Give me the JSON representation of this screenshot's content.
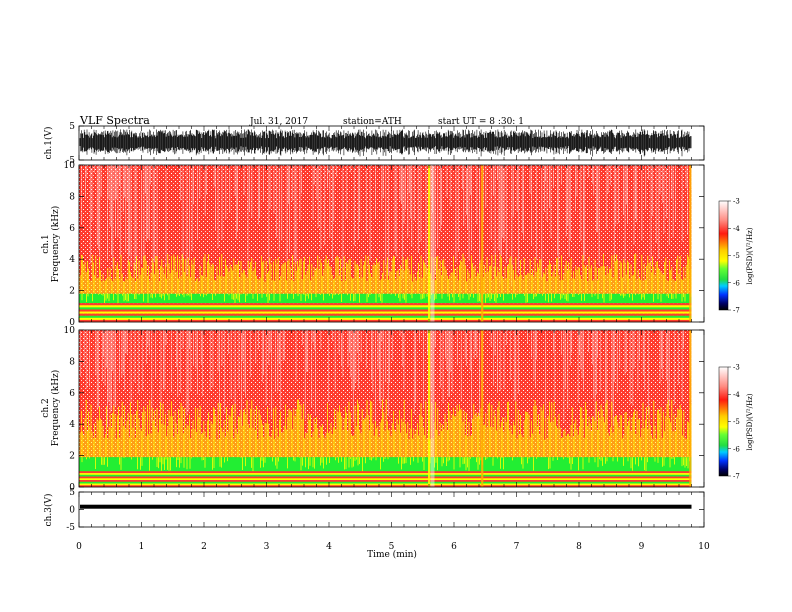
{
  "header": {
    "title": "VLF  Spectra",
    "date": "Jul.  31, 2017",
    "station": "station=ATH",
    "start": "start  UT  =   8  :30: 1"
  },
  "colors": {
    "background": "#ffffff",
    "spectrogram_low": "#ff2a1a",
    "spectrogram_mid": "#ffff00",
    "spectrogram_band": "#22ee33",
    "trace": "#000000"
  },
  "chart_data": [
    {
      "type": "line",
      "name": "ch1-waveform",
      "ylabel": "ch.1(V)",
      "ylim": [
        -5,
        5
      ],
      "yticks": [
        "5",
        "-5"
      ],
      "xlim": [
        0,
        10
      ],
      "description_values": {
        "amplitude_range": [
          -4,
          4
        ],
        "data_end_min": 9.8
      }
    },
    {
      "type": "heatmap",
      "name": "ch1-spectrogram",
      "ylabel_line1": "ch.1",
      "ylabel_line2": "Frequency  (kHz)",
      "ylim": [
        0,
        10
      ],
      "yticks": [
        "0",
        "2",
        "4",
        "6",
        "8",
        "10"
      ],
      "xlim": [
        0,
        10
      ],
      "data_end_min": 9.8,
      "colorbar": {
        "label": "log(PSD)(V²/Hz)",
        "range": [
          -7,
          -3
        ],
        "ticks": [
          "-3",
          "-4",
          "-5",
          "-6",
          "-7"
        ]
      },
      "bands_khz": {
        "green_band": [
          1.2,
          1.8
        ],
        "yellow_top": 3.2
      },
      "vertical_features_min": [
        5.6,
        6.45,
        9.78
      ]
    },
    {
      "type": "heatmap",
      "name": "ch2-spectrogram",
      "ylabel_line1": "ch.2",
      "ylabel_line2": "Frequency  (kHz)",
      "ylim": [
        0,
        10
      ],
      "yticks": [
        "0",
        "2",
        "4",
        "6",
        "8",
        "10"
      ],
      "xlim": [
        0,
        10
      ],
      "data_end_min": 9.8,
      "colorbar": {
        "label": "log(PSD)(V²/Hz)",
        "range": [
          -7,
          -3
        ],
        "ticks": [
          "-3",
          "-4",
          "-5",
          "-6",
          "-7"
        ]
      },
      "bands_khz": {
        "green_band": [
          1.0,
          1.9
        ],
        "yellow_top": 4.6
      },
      "vertical_features_min": [
        5.6,
        6.45,
        9.78
      ]
    },
    {
      "type": "line",
      "name": "ch3-waveform",
      "ylabel": "ch.3(V)",
      "ylim": [
        -5,
        5
      ],
      "yticks": [
        "5",
        "0",
        "-5"
      ],
      "xlim": [
        0,
        10
      ],
      "xlabel": "Time  (min)",
      "xticks": [
        "0",
        "1",
        "2",
        "3",
        "4",
        "5",
        "6",
        "7",
        "8",
        "9",
        "10"
      ],
      "description_values": {
        "mean_level_v": 0.8,
        "data_end_min": 9.8
      }
    }
  ]
}
